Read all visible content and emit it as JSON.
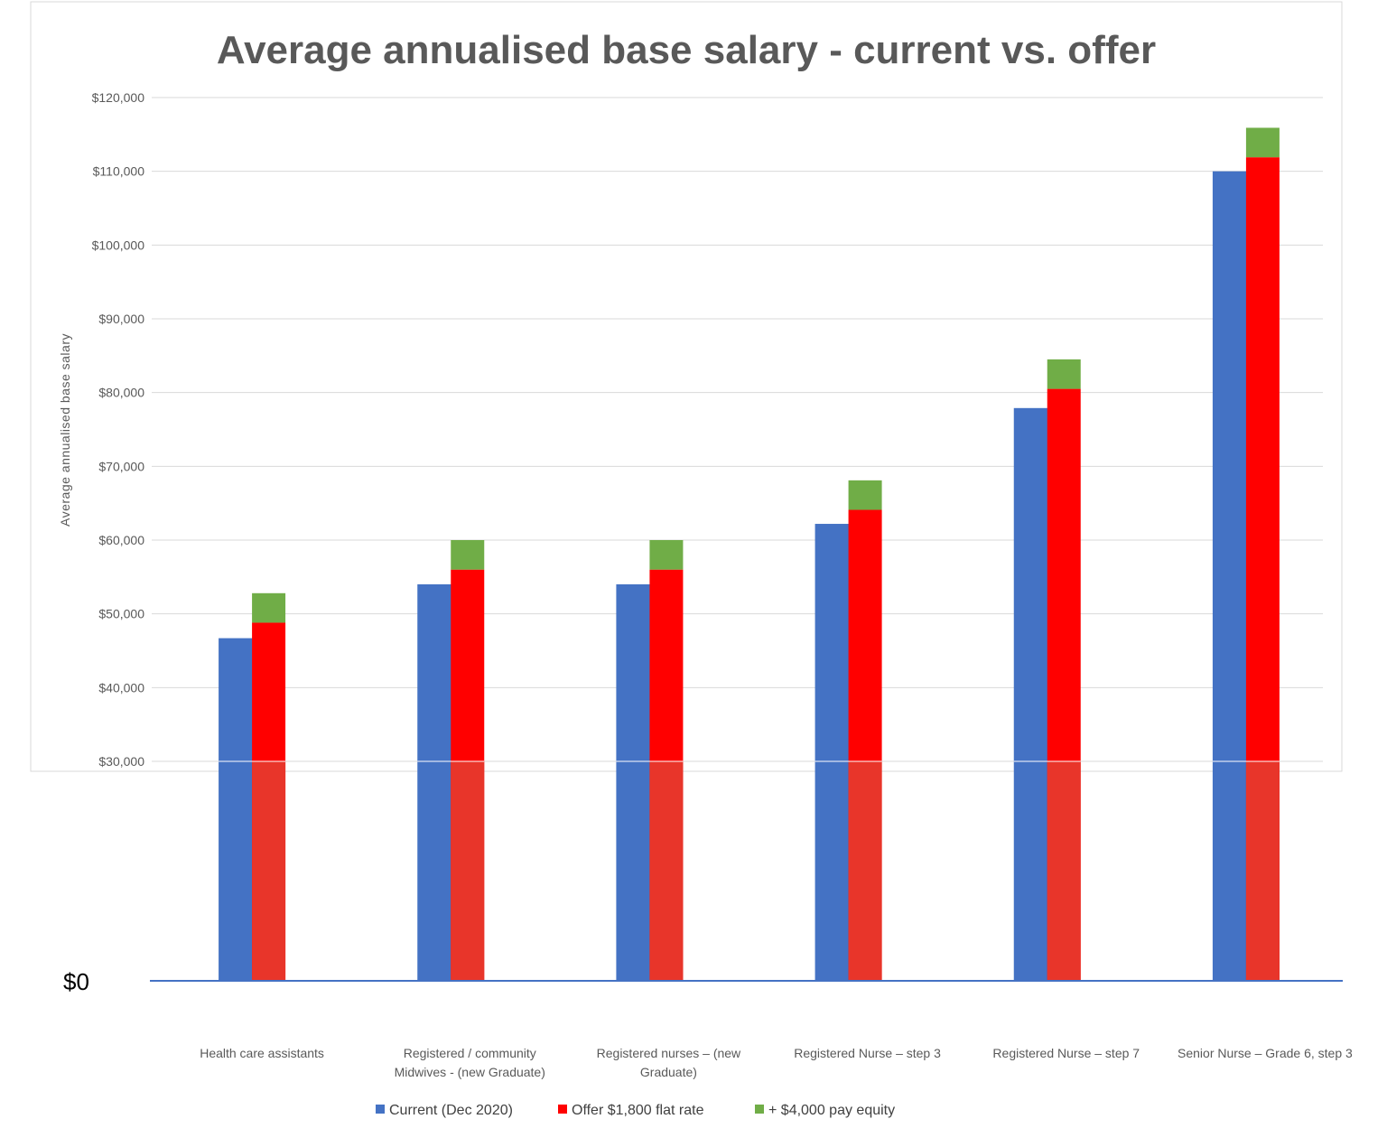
{
  "chart_data": {
    "type": "bar",
    "title": "Average annualised base salary - current vs. offer",
    "ylabel": "Average annualised base salary",
    "xlabel": "",
    "ylim": [
      0,
      120000
    ],
    "y_ticks": [
      {
        "value": 120000,
        "label": "$120,000"
      },
      {
        "value": 110000,
        "label": "$110,000"
      },
      {
        "value": 100000,
        "label": "$100,000"
      },
      {
        "value": 90000,
        "label": "$90,000"
      },
      {
        "value": 80000,
        "label": "$80,000"
      },
      {
        "value": 70000,
        "label": "$70,000"
      },
      {
        "value": 60000,
        "label": "$60,000"
      },
      {
        "value": 50000,
        "label": "$50,000"
      },
      {
        "value": 40000,
        "label": "$40,000"
      },
      {
        "value": 30000,
        "label": "$30,000"
      },
      {
        "value": 0,
        "label": "$0"
      }
    ],
    "categories": [
      [
        "Health care assistants"
      ],
      [
        "Registered / community",
        "Midwives  - (new Graduate)"
      ],
      [
        "Registered nurses – (new",
        "Graduate)"
      ],
      [
        "Registered Nurse – step 3"
      ],
      [
        "Registered Nurse – step 7"
      ],
      [
        "Senior Nurse – Grade 6, step 3"
      ]
    ],
    "series": [
      {
        "name": "Current (Dec 2020)",
        "color": "#4472C4",
        "values": [
          46700,
          54000,
          54000,
          62200,
          77900,
          110000
        ]
      },
      {
        "name": "Offer $1,800 flat rate",
        "color": "#FF0000",
        "values": [
          48800,
          56000,
          56000,
          64100,
          80500,
          111900
        ]
      },
      {
        "name": "+ $4,000 pay equity",
        "color": "#70AD47",
        "values": [
          52800,
          60000,
          60000,
          68100,
          84500,
          115900
        ],
        "stacked_on": "Offer $1,800 flat rate"
      }
    ],
    "legend_position": "bottom",
    "grid": true
  }
}
